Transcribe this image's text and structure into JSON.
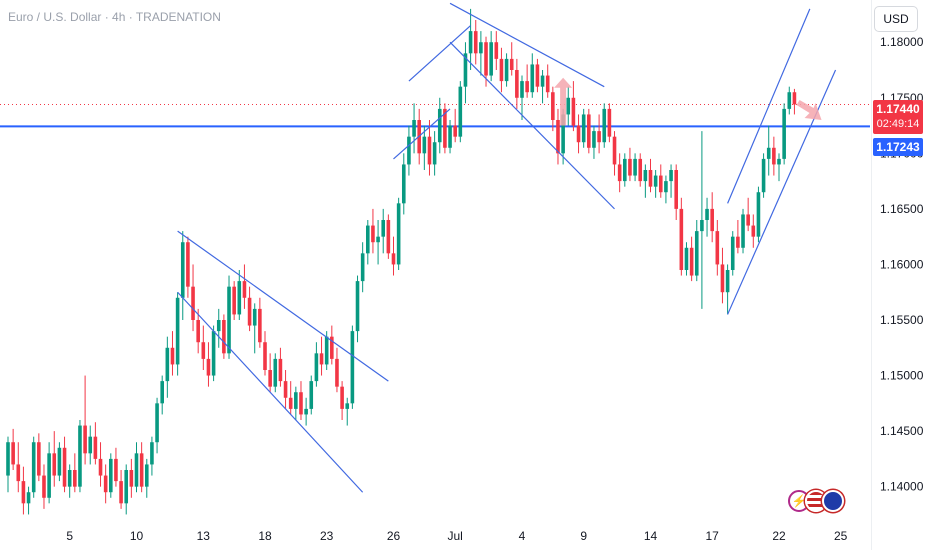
{
  "header": {
    "title": "Euro / U.S. Dollar · 4h · TRADENATION"
  },
  "axis": {
    "currency_label": "USD"
  },
  "price_tags": {
    "last_price": "1.17440",
    "countdown": "02:49:14",
    "level_price": "1.17243"
  },
  "icons": [
    "lightning-icon",
    "us-flag-icon",
    "eu-flag-icon"
  ],
  "colors": {
    "up": "#089981",
    "down": "#f23645",
    "level": "#2962ff",
    "trendline": "#4169e1",
    "forecast_arrow": "#f5a6ad"
  },
  "chart_data": {
    "type": "candlestick",
    "title": "",
    "xlabel": "",
    "ylabel": "",
    "ylim": [
      1.137,
      1.1838
    ],
    "y_ticks": [
      "1.18000",
      "1.17500",
      "1.17000",
      "1.16500",
      "1.16000",
      "1.15500",
      "1.15000",
      "1.14500",
      "1.14000"
    ],
    "y_tick_values": [
      1.18,
      1.175,
      1.17,
      1.165,
      1.16,
      1.155,
      1.15,
      1.145,
      1.14
    ],
    "x_ticks": [
      "5",
      "10",
      "13",
      "18",
      "23",
      "26",
      "Jul",
      "4",
      "9",
      "14",
      "17",
      "22",
      "25"
    ],
    "x_tick_bars": [
      12,
      25,
      38,
      50,
      62,
      75,
      87,
      100,
      112,
      125,
      137,
      150,
      162
    ],
    "grid": false,
    "horizontal_level": 1.17243,
    "last_price": 1.1744,
    "candles": [
      [
        1.141,
        1.1445,
        1.1395,
        1.144
      ],
      [
        1.144,
        1.1452,
        1.1415,
        1.142
      ],
      [
        1.142,
        1.144,
        1.1395,
        1.1405
      ],
      [
        1.1405,
        1.1418,
        1.1375,
        1.1385
      ],
      [
        1.1385,
        1.14,
        1.1375,
        1.1395
      ],
      [
        1.1395,
        1.1445,
        1.139,
        1.144
      ],
      [
        1.144,
        1.1448,
        1.1405,
        1.141
      ],
      [
        1.141,
        1.142,
        1.138,
        1.139
      ],
      [
        1.139,
        1.144,
        1.1385,
        1.143
      ],
      [
        1.143,
        1.145,
        1.14,
        1.141
      ],
      [
        1.141,
        1.144,
        1.1405,
        1.1435
      ],
      [
        1.1435,
        1.1445,
        1.1395,
        1.14
      ],
      [
        1.14,
        1.142,
        1.139,
        1.1415
      ],
      [
        1.1415,
        1.143,
        1.1395,
        1.14
      ],
      [
        1.14,
        1.146,
        1.1395,
        1.1455
      ],
      [
        1.1455,
        1.15,
        1.142,
        1.143
      ],
      [
        1.143,
        1.1455,
        1.142,
        1.1445
      ],
      [
        1.1445,
        1.1458,
        1.142,
        1.1425
      ],
      [
        1.1425,
        1.144,
        1.14,
        1.141
      ],
      [
        1.141,
        1.142,
        1.1385,
        1.1395
      ],
      [
        1.1395,
        1.143,
        1.139,
        1.1425
      ],
      [
        1.1425,
        1.1435,
        1.14,
        1.1405
      ],
      [
        1.1405,
        1.1415,
        1.138,
        1.1385
      ],
      [
        1.1385,
        1.142,
        1.1375,
        1.1415
      ],
      [
        1.1415,
        1.1425,
        1.139,
        1.14
      ],
      [
        1.14,
        1.144,
        1.1395,
        1.143
      ],
      [
        1.143,
        1.144,
        1.1395,
        1.14
      ],
      [
        1.14,
        1.1425,
        1.139,
        1.142
      ],
      [
        1.142,
        1.1445,
        1.141,
        1.144
      ],
      [
        1.144,
        1.148,
        1.143,
        1.1475
      ],
      [
        1.1475,
        1.15,
        1.1465,
        1.1495
      ],
      [
        1.1495,
        1.1535,
        1.148,
        1.1525
      ],
      [
        1.1525,
        1.154,
        1.15,
        1.151
      ],
      [
        1.151,
        1.1575,
        1.15,
        1.157
      ],
      [
        1.157,
        1.163,
        1.155,
        1.162
      ],
      [
        1.162,
        1.1625,
        1.157,
        1.158
      ],
      [
        1.158,
        1.16,
        1.154,
        1.155
      ],
      [
        1.155,
        1.156,
        1.152,
        1.153
      ],
      [
        1.153,
        1.1545,
        1.1505,
        1.1515
      ],
      [
        1.1515,
        1.153,
        1.149,
        1.15
      ],
      [
        1.15,
        1.1545,
        1.1495,
        1.154
      ],
      [
        1.154,
        1.156,
        1.1525,
        1.155
      ],
      [
        1.155,
        1.1555,
        1.1515,
        1.152
      ],
      [
        1.152,
        1.159,
        1.1515,
        1.158
      ],
      [
        1.158,
        1.1585,
        1.155,
        1.1555
      ],
      [
        1.1555,
        1.1595,
        1.155,
        1.1585
      ],
      [
        1.1585,
        1.16,
        1.156,
        1.157
      ],
      [
        1.157,
        1.158,
        1.154,
        1.1545
      ],
      [
        1.1545,
        1.1565,
        1.152,
        1.156
      ],
      [
        1.156,
        1.157,
        1.1525,
        1.153
      ],
      [
        1.153,
        1.154,
        1.15,
        1.1505
      ],
      [
        1.1505,
        1.152,
        1.1485,
        1.149
      ],
      [
        1.149,
        1.152,
        1.1485,
        1.1515
      ],
      [
        1.1515,
        1.1525,
        1.149,
        1.1495
      ],
      [
        1.1495,
        1.1505,
        1.147,
        1.148
      ],
      [
        1.148,
        1.1495,
        1.1465,
        1.147
      ],
      [
        1.147,
        1.149,
        1.146,
        1.1485
      ],
      [
        1.1485,
        1.1495,
        1.146,
        1.1465
      ],
      [
        1.1465,
        1.148,
        1.1455,
        1.147
      ],
      [
        1.147,
        1.15,
        1.1465,
        1.1495
      ],
      [
        1.1495,
        1.153,
        1.149,
        1.152
      ],
      [
        1.152,
        1.1535,
        1.15,
        1.151
      ],
      [
        1.151,
        1.154,
        1.1505,
        1.1535
      ],
      [
        1.1535,
        1.1545,
        1.151,
        1.1515
      ],
      [
        1.1515,
        1.1525,
        1.1485,
        1.149
      ],
      [
        1.149,
        1.1495,
        1.146,
        1.147
      ],
      [
        1.147,
        1.148,
        1.1455,
        1.1475
      ],
      [
        1.1475,
        1.1545,
        1.147,
        1.154
      ],
      [
        1.154,
        1.159,
        1.153,
        1.1585
      ],
      [
        1.1585,
        1.162,
        1.1575,
        1.161
      ],
      [
        1.161,
        1.164,
        1.16,
        1.1635
      ],
      [
        1.1635,
        1.165,
        1.161,
        1.162
      ],
      [
        1.162,
        1.164,
        1.16,
        1.1625
      ],
      [
        1.1625,
        1.165,
        1.161,
        1.164
      ],
      [
        1.164,
        1.1645,
        1.1605,
        1.161
      ],
      [
        1.161,
        1.1625,
        1.159,
        1.16
      ],
      [
        1.16,
        1.166,
        1.1595,
        1.1655
      ],
      [
        1.1655,
        1.17,
        1.1645,
        1.169
      ],
      [
        1.169,
        1.1725,
        1.168,
        1.1715
      ],
      [
        1.1715,
        1.1745,
        1.17,
        1.173
      ],
      [
        1.173,
        1.174,
        1.169,
        1.17
      ],
      [
        1.17,
        1.1725,
        1.1685,
        1.1715
      ],
      [
        1.1715,
        1.173,
        1.168,
        1.169
      ],
      [
        1.169,
        1.172,
        1.168,
        1.171
      ],
      [
        1.171,
        1.175,
        1.17,
        1.174
      ],
      [
        1.174,
        1.1745,
        1.17,
        1.1705
      ],
      [
        1.1705,
        1.173,
        1.17,
        1.1725
      ],
      [
        1.1725,
        1.174,
        1.171,
        1.1715
      ],
      [
        1.1715,
        1.1765,
        1.171,
        1.176
      ],
      [
        1.176,
        1.18,
        1.1745,
        1.179
      ],
      [
        1.179,
        1.183,
        1.1775,
        1.181
      ],
      [
        1.181,
        1.182,
        1.178,
        1.179
      ],
      [
        1.179,
        1.181,
        1.177,
        1.18
      ],
      [
        1.18,
        1.1805,
        1.176,
        1.177
      ],
      [
        1.177,
        1.181,
        1.1765,
        1.18
      ],
      [
        1.18,
        1.181,
        1.1775,
        1.1785
      ],
      [
        1.1785,
        1.1795,
        1.1755,
        1.1765
      ],
      [
        1.1765,
        1.179,
        1.176,
        1.1785
      ],
      [
        1.1785,
        1.18,
        1.177,
        1.1775
      ],
      [
        1.1775,
        1.1785,
        1.174,
        1.175
      ],
      [
        1.175,
        1.177,
        1.173,
        1.1765
      ],
      [
        1.1765,
        1.178,
        1.175,
        1.1755
      ],
      [
        1.1755,
        1.179,
        1.175,
        1.178
      ],
      [
        1.178,
        1.1785,
        1.1755,
        1.176
      ],
      [
        1.176,
        1.1775,
        1.1745,
        1.177
      ],
      [
        1.177,
        1.178,
        1.175,
        1.1755
      ],
      [
        1.1755,
        1.176,
        1.172,
        1.173
      ],
      [
        1.173,
        1.174,
        1.169,
        1.17
      ],
      [
        1.17,
        1.174,
        1.169,
        1.1735
      ],
      [
        1.1735,
        1.176,
        1.1725,
        1.175
      ],
      [
        1.175,
        1.1765,
        1.172,
        1.1725
      ],
      [
        1.1725,
        1.1735,
        1.17,
        1.171
      ],
      [
        1.171,
        1.174,
        1.1705,
        1.1735
      ],
      [
        1.1735,
        1.174,
        1.17,
        1.1705
      ],
      [
        1.1705,
        1.1725,
        1.1695,
        1.172
      ],
      [
        1.172,
        1.1735,
        1.17,
        1.171
      ],
      [
        1.171,
        1.1745,
        1.1705,
        1.174
      ],
      [
        1.174,
        1.1745,
        1.171,
        1.1715
      ],
      [
        1.1715,
        1.172,
        1.168,
        1.169
      ],
      [
        1.169,
        1.17,
        1.1665,
        1.1675
      ],
      [
        1.1675,
        1.17,
        1.167,
        1.1695
      ],
      [
        1.1695,
        1.1705,
        1.1675,
        1.168
      ],
      [
        1.168,
        1.17,
        1.1675,
        1.1695
      ],
      [
        1.1695,
        1.17,
        1.167,
        1.1675
      ],
      [
        1.1675,
        1.169,
        1.166,
        1.1685
      ],
      [
        1.1685,
        1.1695,
        1.1665,
        1.167
      ],
      [
        1.167,
        1.1685,
        1.166,
        1.168
      ],
      [
        1.168,
        1.169,
        1.166,
        1.1665
      ],
      [
        1.1665,
        1.168,
        1.1655,
        1.1675
      ],
      [
        1.1675,
        1.169,
        1.166,
        1.1685
      ],
      [
        1.1685,
        1.169,
        1.164,
        1.165
      ],
      [
        1.165,
        1.166,
        1.159,
        1.1595
      ],
      [
        1.1595,
        1.162,
        1.159,
        1.1615
      ],
      [
        1.1615,
        1.1625,
        1.1585,
        1.159
      ],
      [
        1.159,
        1.164,
        1.1585,
        1.163
      ],
      [
        1.163,
        1.172,
        1.156,
        1.164
      ],
      [
        1.164,
        1.166,
        1.1625,
        1.165
      ],
      [
        1.165,
        1.1665,
        1.162,
        1.163
      ],
      [
        1.163,
        1.164,
        1.159,
        1.16
      ],
      [
        1.16,
        1.1615,
        1.1565,
        1.1575
      ],
      [
        1.1575,
        1.16,
        1.1555,
        1.1595
      ],
      [
        1.1595,
        1.163,
        1.159,
        1.1625
      ],
      [
        1.1625,
        1.164,
        1.161,
        1.1615
      ],
      [
        1.1615,
        1.165,
        1.161,
        1.1645
      ],
      [
        1.1645,
        1.166,
        1.163,
        1.1635
      ],
      [
        1.1635,
        1.1645,
        1.1615,
        1.1625
      ],
      [
        1.1625,
        1.167,
        1.162,
        1.1665
      ],
      [
        1.1665,
        1.17,
        1.166,
        1.1695
      ],
      [
        1.1695,
        1.1725,
        1.168,
        1.1705
      ],
      [
        1.1705,
        1.1715,
        1.168,
        1.169
      ],
      [
        1.169,
        1.17,
        1.1675,
        1.1695
      ],
      [
        1.1695,
        1.1745,
        1.169,
        1.174
      ],
      [
        1.174,
        1.176,
        1.1735,
        1.1755
      ],
      [
        1.1755,
        1.1758,
        1.1735,
        1.1744
      ]
    ],
    "annotations": [
      {
        "type": "channel",
        "from": [
          1.163,
          1.1575
        ],
        "to": [
          1.1495,
          1.1395
        ]
      },
      {
        "type": "channel",
        "from": [
          1.1695,
          1.1765
        ],
        "to": [
          1.174,
          1.1815
        ]
      },
      {
        "type": "channel",
        "from": [
          1.1835,
          1.18
        ],
        "to": [
          1.176,
          1.165
        ]
      },
      {
        "type": "channel",
        "from": [
          1.1555,
          1.1655
        ],
        "to": [
          1.1775,
          1.183
        ]
      },
      {
        "type": "arrow",
        "direction": "up",
        "price_from": 1.1725,
        "price_to": 1.176
      },
      {
        "type": "arrow",
        "direction": "down-right",
        "price_from": 1.175,
        "price_to": 1.173
      }
    ]
  }
}
